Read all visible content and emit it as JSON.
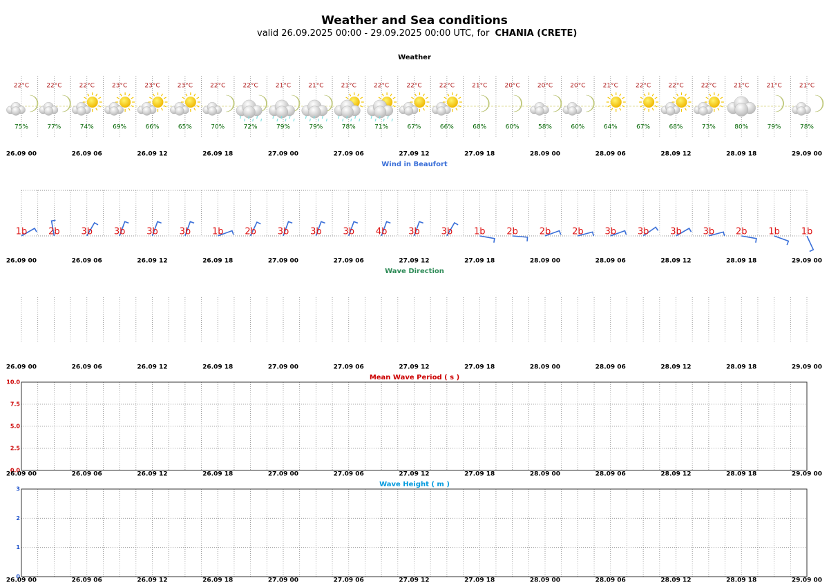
{
  "title": "Weather and Sea conditions",
  "subtitle": "valid 26.09.2025 00:00 - 29.09.2025 00:00 UTC, for",
  "location": "CHANIA (CRETE)",
  "chart_data": [
    {
      "type": "weather",
      "title": "Weather",
      "color": "#000000",
      "categories": [
        "26.09 00",
        null,
        "26.09 06",
        null,
        "26.09 12",
        null,
        "26.09 18",
        null,
        "27.09 00",
        null,
        "27.09 06",
        null,
        "27.09 12",
        null,
        "27.09 18",
        null,
        "28.09 00",
        null,
        "28.09 06",
        null,
        "28.09 12",
        null,
        "28.09 18",
        null,
        "29.09 00"
      ],
      "series": [
        {
          "name": "temperature",
          "color": "#b22222",
          "values": [
            22,
            22,
            22,
            23,
            23,
            23,
            22,
            22,
            21,
            21,
            21,
            22,
            22,
            22,
            21,
            20,
            20,
            20,
            21,
            22,
            22,
            22,
            21,
            21,
            21
          ],
          "value_labels": [
            "22°C",
            "22°C",
            "22°C",
            "23°C",
            "23°C",
            "23°C",
            "22°C",
            "22°C",
            "21°C",
            "21°C",
            "21°C",
            "22°C",
            "22°C",
            "22°C",
            "21°C",
            "20°C",
            "20°C",
            "20°C",
            "21°C",
            "22°C",
            "22°C",
            "22°C",
            "21°C",
            "21°C",
            "21°C"
          ]
        },
        {
          "name": "humidity",
          "color": "#006400",
          "values": [
            75,
            77,
            74,
            69,
            66,
            65,
            70,
            72,
            79,
            79,
            78,
            71,
            67,
            66,
            68,
            60,
            58,
            60,
            64,
            67,
            68,
            73,
            80,
            79,
            78
          ],
          "value_labels": [
            "75%",
            "77%",
            "74%",
            "69%",
            "66%",
            "65%",
            "70%",
            "72%",
            "79%",
            "79%",
            "78%",
            "71%",
            "67%",
            "66%",
            "68%",
            "60%",
            "58%",
            "60%",
            "64%",
            "67%",
            "68%",
            "73%",
            "80%",
            "79%",
            "78%"
          ]
        }
      ]
    },
    {
      "type": "wind",
      "title": "Wind in Beaufort",
      "color": "#3a6fd8",
      "label_color": "#dd1111",
      "categories": [
        "26.09 00",
        null,
        "26.09 06",
        null,
        "26.09 12",
        null,
        "26.09 18",
        null,
        "27.09 00",
        null,
        "27.09 06",
        null,
        "27.09 12",
        null,
        "27.09 18",
        null,
        "28.09 00",
        null,
        "28.09 06",
        null,
        "28.09 12",
        null,
        "28.09 18",
        null,
        "29.09 00"
      ],
      "values": [
        1,
        2,
        3,
        3,
        3,
        3,
        1,
        2,
        3,
        3,
        3,
        4,
        3,
        3,
        1,
        2,
        2,
        2,
        3,
        3,
        3,
        3,
        2,
        1,
        1
      ],
      "value_labels": [
        "1b",
        "2b",
        "3b",
        "3b",
        "3b",
        "3b",
        "1b",
        "2b",
        "3b",
        "3b",
        "3b",
        "4b",
        "3b",
        "3b",
        "1b",
        "2b",
        "2b",
        "2b",
        "3b",
        "3b",
        "3b",
        "3b",
        "2b",
        "1b",
        "1b"
      ],
      "directions": [
        60,
        350,
        30,
        20,
        20,
        20,
        70,
        25,
        20,
        20,
        20,
        20,
        20,
        30,
        100,
        95,
        70,
        75,
        70,
        55,
        60,
        75,
        100,
        110,
        155
      ]
    },
    {
      "type": "direction",
      "title": "Wave Direction",
      "color": "#2e8b57",
      "categories": [
        "26.09 00",
        null,
        "26.09 06",
        null,
        "26.09 12",
        null,
        "26.09 18",
        null,
        "27.09 00",
        null,
        "27.09 06",
        null,
        "27.09 12",
        null,
        "27.09 18",
        null,
        "28.09 00",
        null,
        "28.09 06",
        null,
        "28.09 12",
        null,
        "28.09 18",
        null,
        "29.09 00"
      ]
    },
    {
      "type": "line",
      "title": "Mean Wave Period ( s )",
      "color": "#cc0000",
      "categories": [
        "26.09 00",
        null,
        "26.09 06",
        null,
        "26.09 12",
        null,
        "26.09 18",
        null,
        "27.09 00",
        null,
        "27.09 06",
        null,
        "27.09 12",
        null,
        "27.09 18",
        null,
        "28.09 00",
        null,
        "28.09 06",
        null,
        "28.09 12",
        null,
        "28.09 18",
        null,
        "29.09 00"
      ],
      "ylim": [
        0,
        10
      ],
      "yticks": [
        {
          "value": 0,
          "label": "0.0"
        },
        2.5,
        {
          "value": 5,
          "label": "5.0"
        },
        7.5,
        {
          "value": 10,
          "label": "10.0"
        }
      ],
      "grid": true
    },
    {
      "type": "line",
      "title": "Wave Height ( m )",
      "color": "#0099dd",
      "tick_color": "#2255cc",
      "categories": [
        "26.09 00",
        null,
        "26.09 06",
        null,
        "26.09 12",
        null,
        "26.09 18",
        null,
        "27.09 00",
        null,
        "27.09 06",
        null,
        "27.09 12",
        null,
        "27.09 18",
        null,
        "28.09 00",
        null,
        "28.09 06",
        null,
        "28.09 12",
        null,
        "28.09 18",
        null,
        "29.09 00"
      ],
      "ylim": [
        0,
        3
      ],
      "yticks": [
        0,
        1,
        2,
        3
      ],
      "grid": true
    }
  ]
}
